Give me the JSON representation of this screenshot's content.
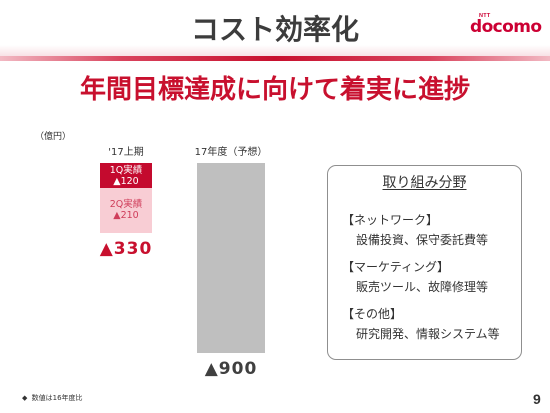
{
  "slide": {
    "title": "コスト効率化",
    "subtitle": "年間目標達成に向けて着実に進捗",
    "page_number": "9",
    "footnote": {
      "marker": "◆",
      "text": "数値は16年度比"
    }
  },
  "logo": {
    "prefix": "NTT",
    "name": "docomo"
  },
  "colors": {
    "accent": "#c8102e",
    "logo": "#cc0033",
    "title": "#3c3c3c",
    "panel_border": "#8f8f8f"
  },
  "chart_data": {
    "type": "bar",
    "stacked": true,
    "downward": true,
    "unit": "（億円）",
    "categories": [
      "'17上期",
      "17年度（予想）"
    ],
    "series": [
      {
        "name": "1Q実績",
        "values": [
          120,
          null
        ],
        "labels": [
          "▲120",
          null
        ],
        "color": "#c40a2e",
        "label_color": "#ffffff"
      },
      {
        "name": "2Q実績",
        "values": [
          210,
          null
        ],
        "labels": [
          "▲210",
          null
        ],
        "color": "#f8cdd4",
        "label_color": "#cf3d5a"
      },
      {
        "values": [
          null,
          900
        ],
        "color": "#bfbfbf"
      }
    ],
    "totals": [
      330,
      900
    ],
    "total_labels": [
      "▲330",
      "▲900"
    ],
    "total_label_colors": [
      "#c8102e",
      "#404040"
    ],
    "grid": false,
    "legend": "none"
  },
  "panel": {
    "title": "取り組み分野",
    "groups": [
      {
        "heading": "【ネットワーク】",
        "detail": "設備投資、保守委託費等"
      },
      {
        "heading": "【マーケティング】",
        "detail": "販売ツール、故障修理等"
      },
      {
        "heading": "【その他】",
        "detail": "研究開発、情報システム等"
      }
    ]
  }
}
